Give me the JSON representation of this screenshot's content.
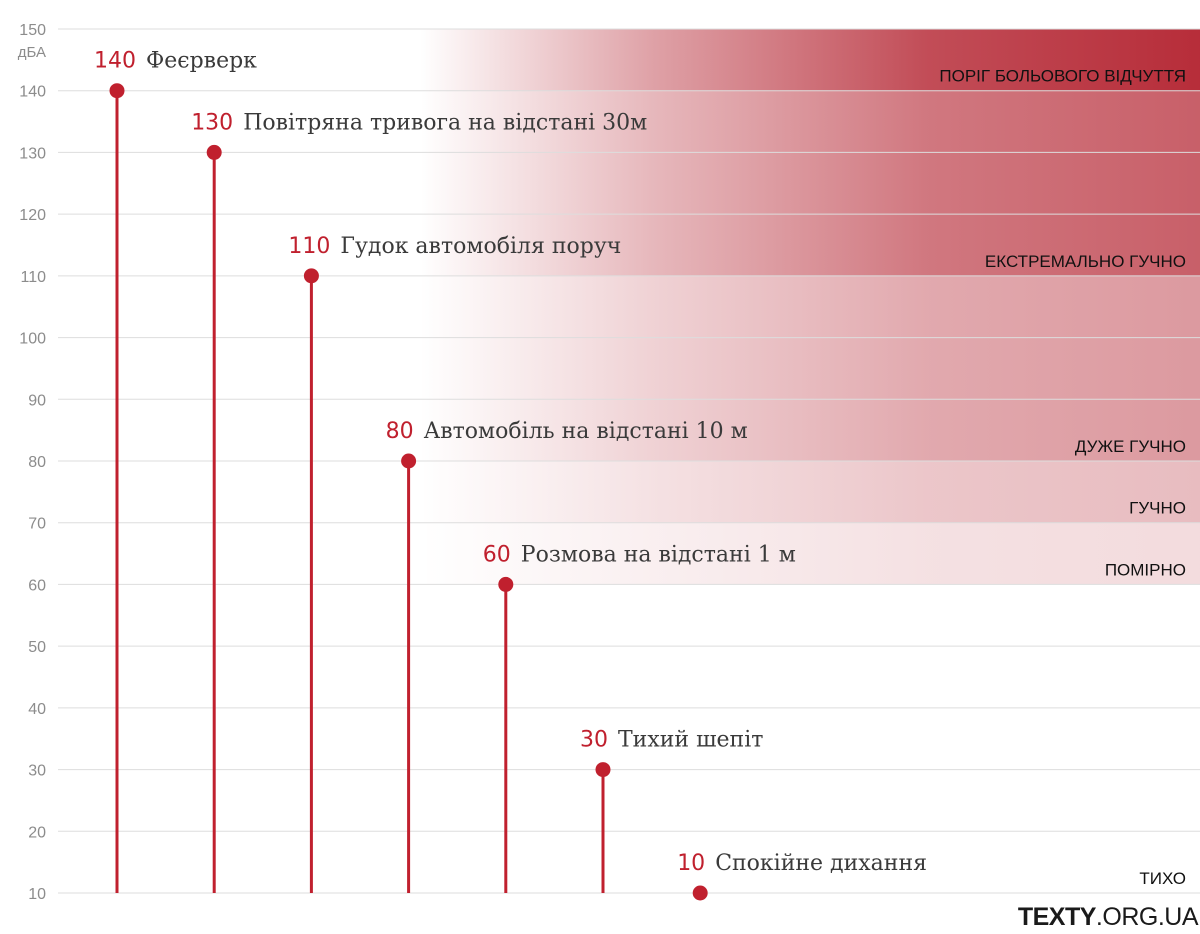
{
  "chart_data": {
    "type": "lollipop",
    "ylabel": "дБА",
    "ylim": [
      10,
      150
    ],
    "yticks": [
      150,
      140,
      130,
      120,
      110,
      100,
      90,
      80,
      70,
      60,
      50,
      40,
      30,
      20,
      10
    ],
    "grid": true,
    "points": [
      {
        "value": 140,
        "label": "Феєрверк"
      },
      {
        "value": 130,
        "label": "Повітряна тривога на відстані 30м"
      },
      {
        "value": 110,
        "label": "Гудок автомобіля поруч"
      },
      {
        "value": 80,
        "label": "Автомобіль на відстані 10 м"
      },
      {
        "value": 60,
        "label": "Розмова на відстані 1 м"
      },
      {
        "value": 30,
        "label": "Тихий шепіт"
      },
      {
        "value": 10,
        "label": "Спокійне дихання"
      }
    ],
    "zones": [
      {
        "from": 140,
        "to": 150,
        "label": "ПОРІГ БОЛЬОВОГО ВІДЧУТТЯ",
        "opacity": 0.95
      },
      {
        "from": 110,
        "to": 140,
        "label": "ЕКСТРЕМАЛЬНО ГУЧНО",
        "opacity": 0.72
      },
      {
        "from": 80,
        "to": 110,
        "label": "ДУЖЕ ГУЧНО",
        "opacity": 0.46
      },
      {
        "from": 70,
        "to": 80,
        "label": "ГУЧНО",
        "opacity": 0.3
      },
      {
        "from": 60,
        "to": 70,
        "label": "ПОМІРНО",
        "opacity": 0.16
      },
      {
        "from": 10,
        "to": 60,
        "label": "ТИХО",
        "opacity": 0
      }
    ]
  },
  "colors": {
    "accent": "#c0202e",
    "zone": "#b3222f",
    "grid": "#dddddd"
  },
  "brand": {
    "name_bold": "TEXTY",
    "name_rest": ".ORG.UA"
  }
}
